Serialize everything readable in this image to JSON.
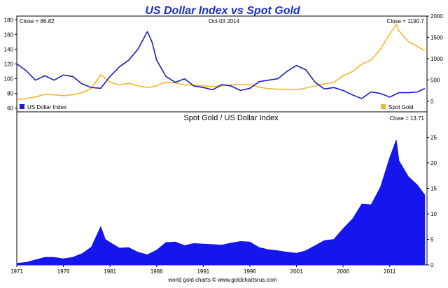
{
  "title": "US Dollar Index vs Spot Gold",
  "footer": "world gold charts © www.goldchartsrus.com",
  "colors": {
    "title": "#1a2fc7",
    "usd": "#1c1cc4",
    "gold": "#f2b72a",
    "ratio": "#1515ee",
    "frame": "#000000",
    "text": "#000000"
  },
  "chart_data": [
    {
      "type": "line",
      "date_label": "Oct-03  2014",
      "close_left": "Close = 86.82",
      "close_right": "Close = 1190.7",
      "legend": [
        {
          "label": "US Dollar Index",
          "color": "#1c1cc4",
          "position": "bottom-left"
        },
        {
          "label": "Spot Gold",
          "color": "#f2b72a",
          "position": "bottom-right"
        }
      ],
      "left_axis": {
        "range": [
          55,
          185
        ],
        "ticks": [
          60,
          80,
          100,
          120,
          140,
          160,
          180
        ]
      },
      "right_axis": {
        "range": [
          -250,
          2000
        ],
        "ticks": [
          0,
          500,
          1000,
          1500,
          2000
        ]
      },
      "series": [
        {
          "name": "US Dollar Index",
          "axis": "left",
          "color": "#1c1cc4",
          "points": [
            [
              1971,
              120
            ],
            [
              1972,
              111
            ],
            [
              1973,
              98
            ],
            [
              1974,
              104
            ],
            [
              1975,
              98
            ],
            [
              1976,
              105
            ],
            [
              1977,
              103
            ],
            [
              1978,
              93
            ],
            [
              1979,
              88
            ],
            [
              1980,
              87
            ],
            [
              1981,
              103
            ],
            [
              1982,
              116
            ],
            [
              1983,
              125
            ],
            [
              1984,
              140
            ],
            [
              1985,
              164
            ],
            [
              1985.5,
              150
            ],
            [
              1986,
              125
            ],
            [
              1987,
              103
            ],
            [
              1988,
              95
            ],
            [
              1989,
              100
            ],
            [
              1990,
              90
            ],
            [
              1991,
              88
            ],
            [
              1992,
              85
            ],
            [
              1993,
              92
            ],
            [
              1994,
              90
            ],
            [
              1995,
              84
            ],
            [
              1996,
              87
            ],
            [
              1997,
              96
            ],
            [
              1998,
              98
            ],
            [
              1999,
              100
            ],
            [
              2000,
              110
            ],
            [
              2001,
              118
            ],
            [
              2002,
              112
            ],
            [
              2003,
              95
            ],
            [
              2004,
              86
            ],
            [
              2005,
              88
            ],
            [
              2006,
              84
            ],
            [
              2007,
              78
            ],
            [
              2008,
              73
            ],
            [
              2009,
              82
            ],
            [
              2010,
              80
            ],
            [
              2011,
              75
            ],
            [
              2012,
              81
            ],
            [
              2013,
              81
            ],
            [
              2014,
              82
            ],
            [
              2014.76,
              86.82
            ]
          ]
        },
        {
          "name": "Spot Gold",
          "axis": "right",
          "color": "#f2b72a",
          "points": [
            [
              1971,
              40
            ],
            [
              1972,
              60
            ],
            [
              1973,
              100
            ],
            [
              1974,
              160
            ],
            [
              1975,
              150
            ],
            [
              1976,
              130
            ],
            [
              1977,
              150
            ],
            [
              1978,
              200
            ],
            [
              1979,
              300
            ],
            [
              1980,
              620
            ],
            [
              1981,
              450
            ],
            [
              1982,
              380
            ],
            [
              1983,
              420
            ],
            [
              1984,
              360
            ],
            [
              1985,
              320
            ],
            [
              1986,
              360
            ],
            [
              1987,
              450
            ],
            [
              1988,
              430
            ],
            [
              1989,
              380
            ],
            [
              1990,
              380
            ],
            [
              1991,
              360
            ],
            [
              1992,
              345
            ],
            [
              1993,
              360
            ],
            [
              1994,
              385
            ],
            [
              1995,
              385
            ],
            [
              1996,
              390
            ],
            [
              1997,
              330
            ],
            [
              1998,
              295
            ],
            [
              1999,
              280
            ],
            [
              2000,
              280
            ],
            [
              2001,
              270
            ],
            [
              2002,
              310
            ],
            [
              2003,
              360
            ],
            [
              2004,
              410
            ],
            [
              2005,
              440
            ],
            [
              2006,
              600
            ],
            [
              2007,
              700
            ],
            [
              2008,
              870
            ],
            [
              2009,
              970
            ],
            [
              2010,
              1220
            ],
            [
              2011,
              1580
            ],
            [
              2011.7,
              1800
            ],
            [
              2012,
              1650
            ],
            [
              2013,
              1400
            ],
            [
              2014,
              1280
            ],
            [
              2014.76,
              1190.7
            ]
          ]
        }
      ]
    },
    {
      "type": "area",
      "title": "Spot Gold  /  US Dollar Index",
      "close": "Close = 13.71",
      "y_axis": {
        "range": [
          0,
          30
        ],
        "ticks": [
          0,
          5,
          10,
          15,
          20,
          25
        ]
      },
      "x_axis": {
        "range": [
          1971,
          2015
        ],
        "ticks": [
          "1971",
          "1976",
          "1981",
          "1986",
          "1991",
          "1996",
          "2001",
          "2006",
          "2011"
        ]
      },
      "series": [
        {
          "name": "Spot Gold / US Dollar Index",
          "color": "#1515ee",
          "points": [
            [
              1971,
              0.33
            ],
            [
              1972,
              0.5
            ],
            [
              1973,
              1
            ],
            [
              1974,
              1.5
            ],
            [
              1975,
              1.5
            ],
            [
              1976,
              1.2
            ],
            [
              1977,
              1.5
            ],
            [
              1978,
              2.2
            ],
            [
              1979,
              3.5
            ],
            [
              1980,
              7.5
            ],
            [
              1980.5,
              5
            ],
            [
              1981,
              4.4
            ],
            [
              1982,
              3.3
            ],
            [
              1983,
              3.4
            ],
            [
              1984,
              2.5
            ],
            [
              1985,
              2
            ],
            [
              1986,
              2.9
            ],
            [
              1987,
              4.4
            ],
            [
              1988,
              4.5
            ],
            [
              1989,
              3.8
            ],
            [
              1990,
              4.2
            ],
            [
              1991,
              4.1
            ],
            [
              1992,
              4
            ],
            [
              1993,
              3.9
            ],
            [
              1994,
              4.3
            ],
            [
              1995,
              4.6
            ],
            [
              1996,
              4.5
            ],
            [
              1997,
              3.4
            ],
            [
              1998,
              3
            ],
            [
              1999,
              2.8
            ],
            [
              2000,
              2.5
            ],
            [
              2001,
              2.3
            ],
            [
              2002,
              2.8
            ],
            [
              2003,
              3.8
            ],
            [
              2004,
              4.8
            ],
            [
              2005,
              5
            ],
            [
              2006,
              7.1
            ],
            [
              2007,
              9
            ],
            [
              2008,
              11.9
            ],
            [
              2009,
              11.8
            ],
            [
              2010,
              15.2
            ],
            [
              2011,
              21
            ],
            [
              2011.7,
              24.5
            ],
            [
              2012,
              20.4
            ],
            [
              2013,
              17.3
            ],
            [
              2014,
              15.6
            ],
            [
              2014.76,
              13.71
            ]
          ]
        }
      ]
    }
  ]
}
